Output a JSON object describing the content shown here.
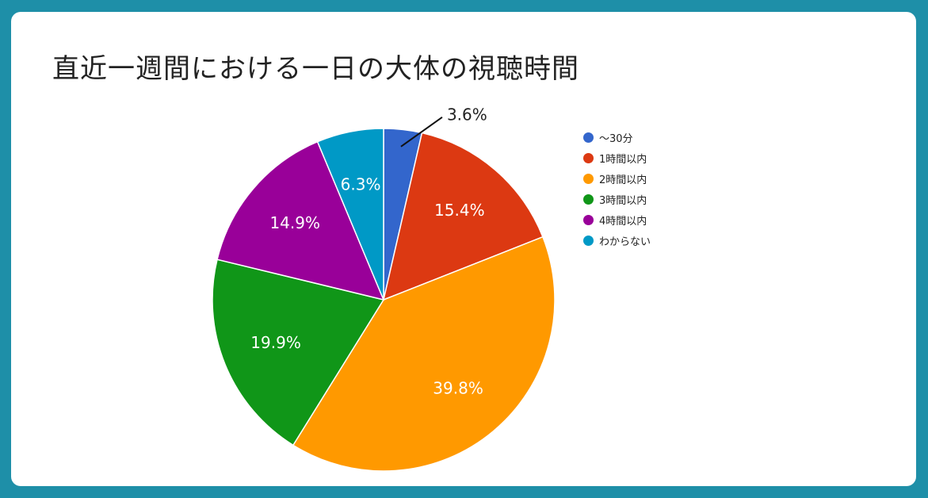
{
  "chart_data": {
    "type": "pie",
    "title": "直近一週間における一日の大体の視聴時間",
    "legend_position": "right",
    "slices": [
      {
        "label": "〜30分",
        "value": 3.6,
        "value_label": "3.6%",
        "color": "#3366cc"
      },
      {
        "label": "1時間以内",
        "value": 15.4,
        "value_label": "15.4%",
        "color": "#dc3912"
      },
      {
        "label": "2時間以内",
        "value": 39.8,
        "value_label": "39.8%",
        "color": "#ff9900"
      },
      {
        "label": "3時間以内",
        "value": 19.9,
        "value_label": "19.9%",
        "color": "#109618"
      },
      {
        "label": "4時間以内",
        "value": 14.9,
        "value_label": "14.9%",
        "color": "#990099"
      },
      {
        "label": "わからない",
        "value": 6.3,
        "value_label": "6.3%",
        "color": "#0099c6"
      }
    ]
  },
  "colors": {
    "background": "#1e8fa8",
    "card": "#ffffff"
  }
}
